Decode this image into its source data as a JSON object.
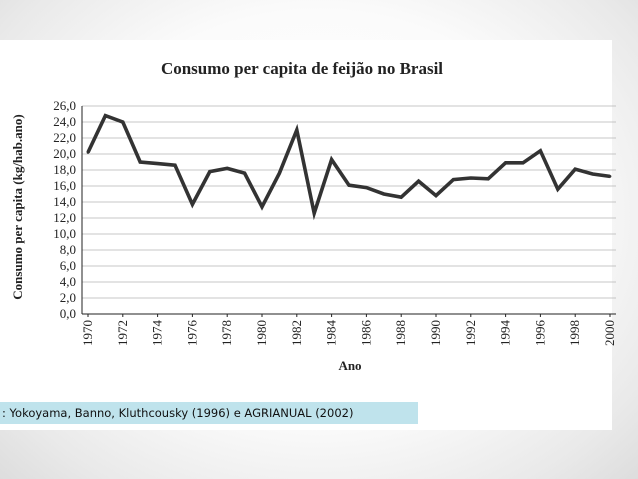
{
  "source_caption": ": Yokoyama, Banno, Kluthcousky (1996) e AGRIANUAL (2002)",
  "colors": {
    "line": "#333333",
    "grid": "#b5b5b5",
    "caption_bg": "#bfe3ec"
  },
  "chart_data": {
    "type": "line",
    "title": "Consumo per capita de feijão no Brasil",
    "xlabel": "Ano",
    "ylabel": "Consumo per capita (kg/hab.ano)",
    "ylim": [
      0,
      26
    ],
    "yticks": [
      0,
      2,
      4,
      6,
      8,
      10,
      12,
      14,
      16,
      18,
      20,
      22,
      24,
      26
    ],
    "ytick_labels": [
      "0,0",
      "2,0",
      "4,0",
      "6,0",
      "8,0",
      "10,0",
      "12,0",
      "14,0",
      "16,0",
      "18,0",
      "20,0",
      "22,0",
      "24,0",
      "26,0"
    ],
    "xlim": [
      1970,
      2000
    ],
    "xticks": [
      1970,
      1972,
      1974,
      1976,
      1978,
      1980,
      1982,
      1984,
      1986,
      1988,
      1990,
      1992,
      1994,
      1996,
      1998,
      2000
    ],
    "grid": true,
    "series": [
      {
        "name": "Consumo per capita",
        "x": [
          1970,
          1971,
          1972,
          1973,
          1974,
          1975,
          1976,
          1977,
          1978,
          1979,
          1980,
          1981,
          1982,
          1983,
          1984,
          1985,
          1986,
          1987,
          1988,
          1989,
          1990,
          1991,
          1992,
          1993,
          1994,
          1995,
          1996,
          1997,
          1998,
          1999,
          2000
        ],
        "y": [
          20.2,
          24.8,
          24.0,
          19.0,
          18.8,
          18.6,
          13.7,
          17.8,
          18.2,
          17.6,
          13.4,
          17.6,
          23.0,
          12.6,
          19.3,
          16.1,
          15.8,
          15.0,
          14.6,
          16.6,
          14.8,
          16.8,
          17.0,
          16.9,
          18.9,
          18.9,
          20.4,
          15.6,
          18.1,
          17.5,
          17.2
        ]
      }
    ]
  }
}
